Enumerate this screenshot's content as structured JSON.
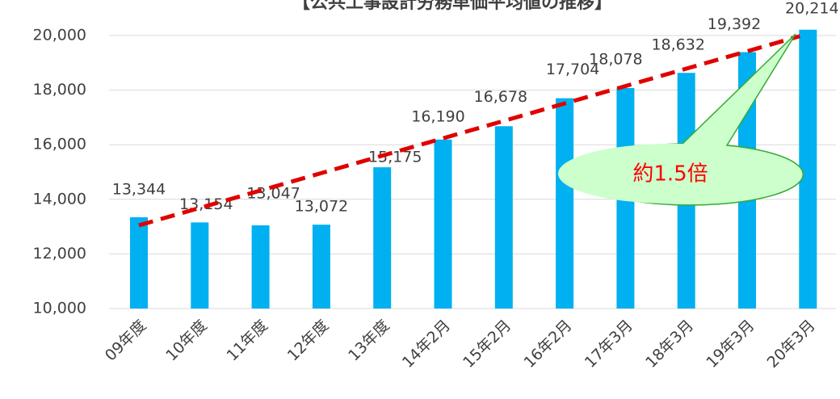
{
  "chart_data": {
    "type": "bar",
    "title": "【公共工事設計労務単価平均値の推移】",
    "categories": [
      "09年度",
      "10年度",
      "11年度",
      "12年度",
      "13年度",
      "14年2月",
      "15年2月",
      "16年2月",
      "17年3月",
      "18年3月",
      "19年3月",
      "20年3月"
    ],
    "values": [
      13344,
      13154,
      13047,
      13072,
      15175,
      16190,
      16678,
      17704,
      18078,
      18632,
      19392,
      20214
    ],
    "value_labels": [
      "13,344",
      "13,154",
      "13,047",
      "13,072",
      "15,175",
      "16,190",
      "16,678",
      "17,704",
      "18,078",
      "18,632",
      "19,392",
      "20,214"
    ],
    "color": "#00b0f0",
    "ylim": [
      10000,
      20000
    ],
    "yticks": [
      {
        "value": 10000,
        "label": "10,000"
      },
      {
        "value": 12000,
        "label": "12,000"
      },
      {
        "value": 14000,
        "label": "14,000"
      },
      {
        "value": 16000,
        "label": "16,000"
      },
      {
        "value": 18000,
        "label": "18,000"
      },
      {
        "value": 20000,
        "label": "20,000"
      }
    ],
    "grid": true,
    "annotation": "約1.5倍"
  }
}
